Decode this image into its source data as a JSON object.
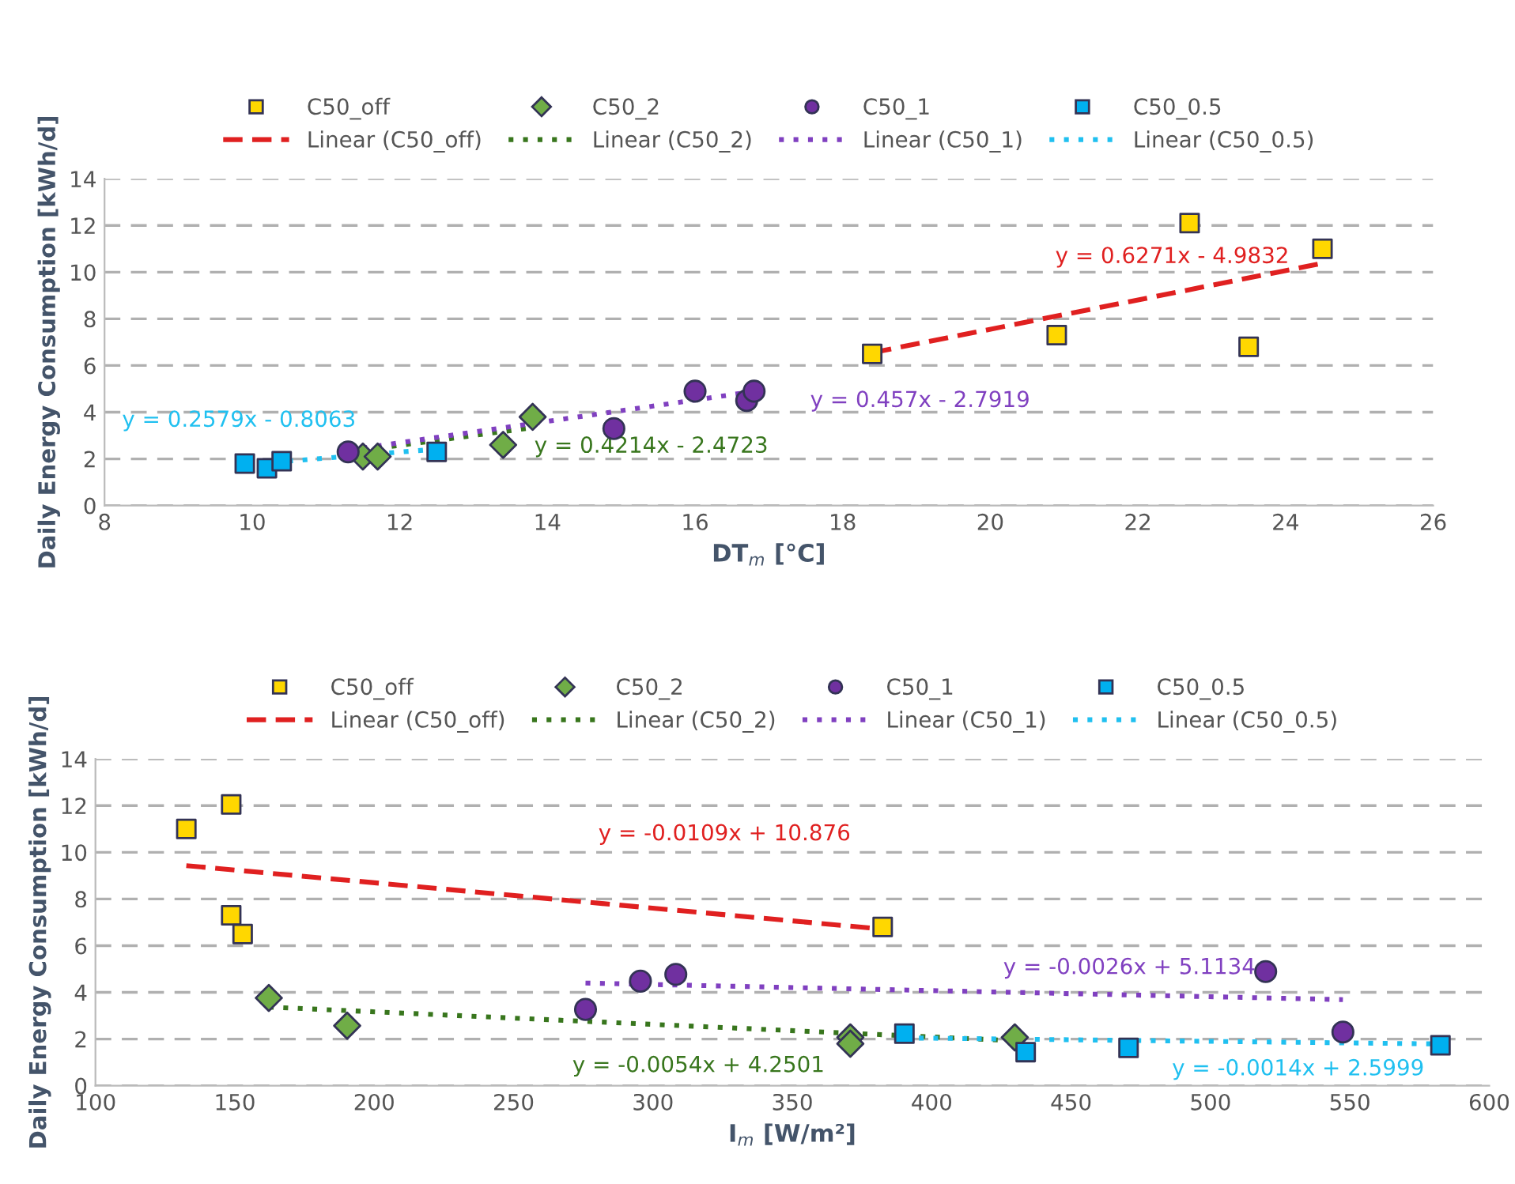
{
  "chart_data": [
    {
      "type": "scatter",
      "xlabel": "DT$_{m}$ [°C]",
      "ylabel": "Daily Energy Consumption [kWh/d]",
      "xlim": [
        8,
        26
      ],
      "xticks": [
        8,
        10,
        12,
        14,
        16,
        18,
        20,
        22,
        24,
        26
      ],
      "ylim": [
        0,
        14
      ],
      "yticks": [
        0,
        2,
        4,
        6,
        8,
        10,
        12,
        14
      ],
      "grid": "y",
      "legend": "top",
      "series": [
        {
          "name": "C50_off",
          "type": "scatter",
          "marker": "square",
          "color": "#ffd700",
          "x": [
            18.4,
            20.9,
            22.7,
            23.5,
            24.5
          ],
          "values": [
            6.5,
            7.3,
            12.1,
            6.8,
            11.0
          ]
        },
        {
          "name": "Linear (C50_off)",
          "type": "line",
          "line_style": "dashed",
          "marker": "none",
          "color": "#e02020",
          "x": [
            18.4,
            24.5
          ],
          "values": [
            6.55,
            10.38
          ]
        },
        {
          "name": "C50_2",
          "type": "scatter",
          "marker": "diamond",
          "color": "#70ad47",
          "x": [
            11.5,
            11.7,
            13.4,
            13.8
          ],
          "values": [
            2.1,
            2.1,
            2.6,
            3.8
          ]
        },
        {
          "name": "Linear (C50_2)",
          "type": "line",
          "line_style": "dotted",
          "marker": "none",
          "color": "#38761d",
          "x": [
            11.5,
            13.8
          ],
          "values": [
            2.37,
            3.34
          ]
        },
        {
          "name": "C50_1",
          "type": "scatter",
          "marker": "circle",
          "color": "#7030a0",
          "x": [
            11.3,
            14.9,
            16.0,
            16.7,
            16.8
          ],
          "values": [
            2.3,
            3.3,
            4.9,
            4.5,
            4.9
          ]
        },
        {
          "name": "Linear (C50_1)",
          "type": "line",
          "line_style": "dotted",
          "marker": "none",
          "color": "#8040c0",
          "x": [
            11.3,
            16.8
          ],
          "values": [
            2.37,
            4.89
          ]
        },
        {
          "name": "C50_0.5",
          "type": "scatter",
          "marker": "square",
          "color": "#00b0f0",
          "x": [
            9.9,
            10.2,
            10.4,
            12.5
          ],
          "values": [
            1.8,
            1.6,
            1.9,
            2.3
          ]
        },
        {
          "name": "Linear (C50_0.5)",
          "type": "line",
          "line_style": "dotted",
          "marker": "none",
          "color": "#20c0f0",
          "x": [
            9.9,
            12.5
          ],
          "values": [
            1.75,
            2.42
          ]
        }
      ],
      "annotations": [
        "y = 0.6271x - 4.9832",
        "y = 0.4214x - 2.4723",
        "y = 0.457x - 2.7919",
        "y = 0.2579x - 0.8063"
      ]
    },
    {
      "type": "scatter",
      "xlabel": "I$_{m}$ [W/m²]",
      "ylabel": "Daily Energy Consumption [kWh/d]",
      "xlim": [
        100,
        600
      ],
      "xticks": [
        100,
        150,
        200,
        250,
        300,
        350,
        400,
        450,
        500,
        550,
        600
      ],
      "ylim": [
        0,
        14
      ],
      "yticks": [
        0,
        2,
        4,
        6,
        8,
        10,
        12,
        14
      ],
      "grid": "y",
      "legend": "top",
      "series": [
        {
          "name": "C50_off",
          "type": "scatter",
          "marker": "square",
          "color": "#ffd700",
          "x": [
            132.6,
            148.7,
            148.7,
            152.8,
            382.4
          ],
          "values": [
            11.0,
            12.05,
            7.3,
            6.5,
            6.8
          ]
        },
        {
          "name": "Linear (C50_off)",
          "type": "line",
          "line_style": "dashed",
          "marker": "none",
          "color": "#e02020",
          "x": [
            132.6,
            382.4
          ],
          "values": [
            9.43,
            6.71
          ]
        },
        {
          "name": "C50_2",
          "type": "scatter",
          "marker": "diamond",
          "color": "#70ad47",
          "x": [
            162.2,
            190.3,
            370.8,
            370.8,
            429.8
          ],
          "values": [
            3.76,
            2.57,
            2.07,
            1.8,
            2.07
          ]
        },
        {
          "name": "Linear (C50_2)",
          "type": "line",
          "line_style": "dotted",
          "marker": "none",
          "color": "#38761d",
          "x": [
            162.2,
            429.8
          ],
          "values": [
            3.37,
            1.93
          ]
        },
        {
          "name": "C50_1",
          "type": "scatter",
          "marker": "circle",
          "color": "#7030a0",
          "x": [
            275.8,
            295.5,
            308.2,
            519.8,
            547.5
          ],
          "values": [
            3.27,
            4.48,
            4.77,
            4.89,
            2.3
          ]
        },
        {
          "name": "Linear (C50_1)",
          "type": "line",
          "line_style": "dotted",
          "marker": "none",
          "color": "#8040c0",
          "x": [
            275.8,
            547.5
          ],
          "values": [
            4.4,
            3.69
          ]
        },
        {
          "name": "C50_0.5",
          "type": "scatter",
          "marker": "square",
          "color": "#00b0f0",
          "x": [
            390.2,
            433.7,
            470.6,
            582.5
          ],
          "values": [
            2.23,
            1.44,
            1.62,
            1.73
          ]
        },
        {
          "name": "Linear (C50_0.5)",
          "type": "line",
          "line_style": "dotted",
          "marker": "none",
          "color": "#20c0f0",
          "x": [
            390.2,
            582.5
          ],
          "values": [
            2.05,
            1.79
          ]
        }
      ],
      "annotations": [
        "y = -0.0109x + 10.876",
        "y = -0.0054x + 4.2501",
        "y = -0.0026x + 5.1134",
        "y = -0.0014x + 2.5999"
      ]
    }
  ]
}
